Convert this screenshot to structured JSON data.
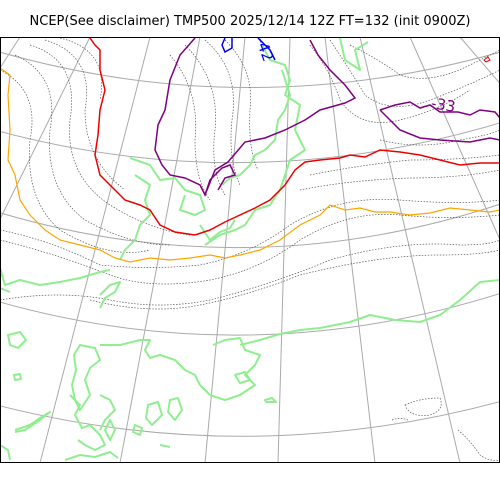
{
  "title": "NCEP(See disclaimer) TMP500 2025/12/14 12Z FT=132 (init 0900Z)",
  "contour_labels": [
    {
      "text": "-42",
      "color": "#0000ee"
    },
    {
      "text": "-33",
      "color": "#800080"
    }
  ],
  "colors": {
    "coastline": "#90ee90",
    "graticule": "#aaaaaa",
    "isotherm_dotted": "#555555",
    "contour_blue": "#0000ee",
    "contour_purple": "#800080",
    "contour_red": "#ee0000",
    "contour_orange": "#ffa500"
  }
}
